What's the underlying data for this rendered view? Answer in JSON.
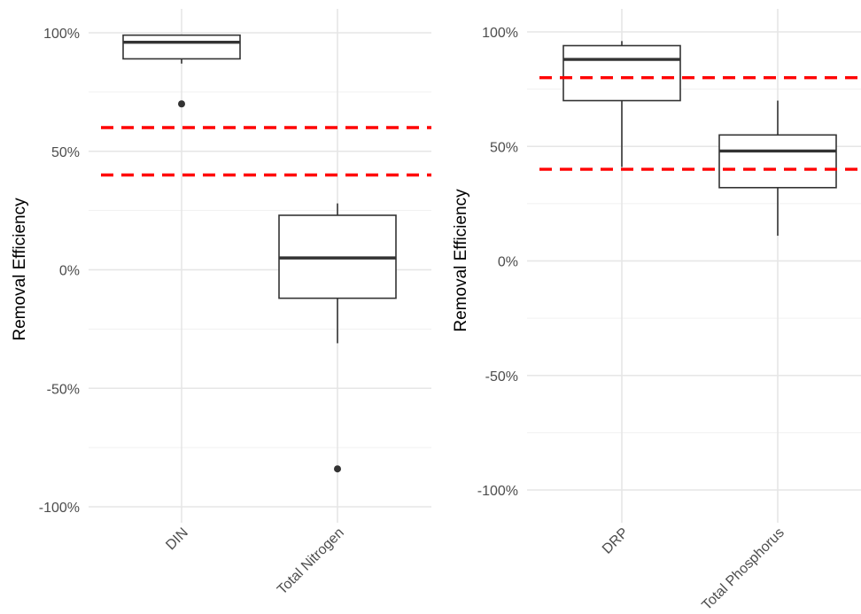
{
  "chart_data": [
    {
      "type": "box",
      "ylabel": "Removal Efficiency",
      "ylim": [
        -110,
        105
      ],
      "yticks": [
        100,
        50,
        0,
        -50,
        -100
      ],
      "ytick_labels": [
        "100%",
        "50%",
        "0%",
        "-50%",
        "-100%"
      ],
      "minor_yticks": [
        75,
        25,
        -25,
        -75
      ],
      "categories": [
        "DIN",
        "Total Nitrogen"
      ],
      "boxes": [
        {
          "whisker_low": 87,
          "q1": 89,
          "median": 96,
          "q3": 99,
          "whisker_high": 99,
          "outliers": [
            70
          ]
        },
        {
          "whisker_low": -31,
          "q1": -12,
          "median": 5,
          "q3": 23,
          "whisker_high": 28,
          "outliers": [
            -84
          ]
        }
      ],
      "reference_lines": [
        60,
        40
      ],
      "reference_color": "#ff0000",
      "grid": true
    },
    {
      "type": "box",
      "ylabel": "Removal Efficiency",
      "ylim": [
        -105,
        105
      ],
      "yticks": [
        100,
        50,
        0,
        -50,
        -100
      ],
      "ytick_labels": [
        "100%",
        "50%",
        "0%",
        "-50%",
        "-100%"
      ],
      "minor_yticks": [
        75,
        25,
        -25,
        -75
      ],
      "categories": [
        "DRP",
        "Total Phosphorus"
      ],
      "boxes": [
        {
          "whisker_low": 41,
          "q1": 70,
          "median": 88,
          "q3": 94,
          "whisker_high": 96,
          "outliers": []
        },
        {
          "whisker_low": 11,
          "q1": 32,
          "median": 48,
          "q3": 55,
          "whisker_high": 70,
          "outliers": []
        }
      ],
      "reference_lines": [
        80,
        40
      ],
      "reference_color": "#ff0000",
      "grid": true
    }
  ]
}
